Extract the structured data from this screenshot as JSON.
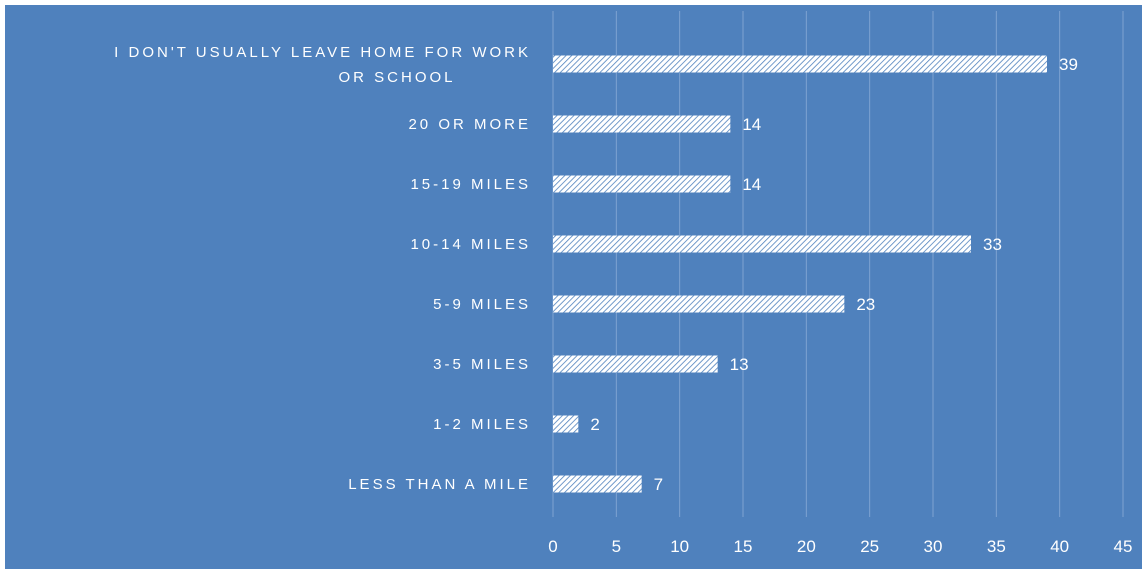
{
  "chart_data": {
    "type": "bar",
    "orientation": "horizontal",
    "title": "",
    "xlabel": "",
    "ylabel": "",
    "categories": [
      [
        "I DON'T USUALLY LEAVE HOME FOR WORK",
        "OR SCHOOL"
      ],
      [
        "20 OR MORE"
      ],
      [
        "15-19 MILES"
      ],
      [
        "10-14 MILES"
      ],
      [
        "5-9 MILES"
      ],
      [
        "3-5 MILES"
      ],
      [
        "1-2 MILES"
      ],
      [
        "LESS THAN A MILE"
      ]
    ],
    "values": [
      39,
      14,
      14,
      33,
      23,
      13,
      2,
      7
    ],
    "xlim": [
      0,
      45
    ],
    "ticks": [
      0,
      5,
      10,
      15,
      20,
      25,
      30,
      35,
      40,
      45
    ],
    "grid": true,
    "legend": "none",
    "data_labels": true,
    "colors": {
      "background": "#4f81bd",
      "bar_fill": "#ffffff",
      "bar_hatch": "#4f81bd",
      "gridline": "#7fa3d1",
      "text": "#ffffff"
    }
  }
}
